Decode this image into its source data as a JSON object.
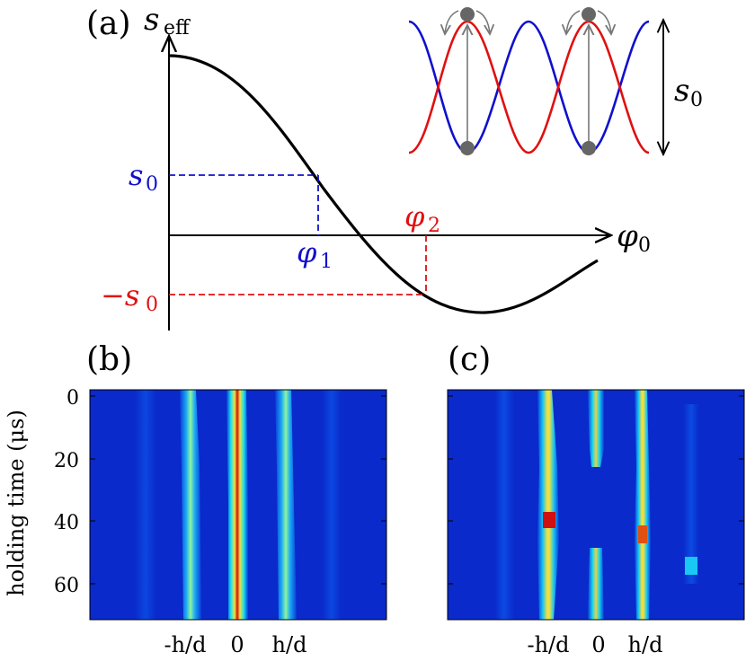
{
  "panel_a": {
    "label": "(a)",
    "y_axis_label": "s",
    "y_axis_sub": "eff",
    "x_axis_label": "φ",
    "x_axis_sub": "0",
    "s0_label": "s",
    "s0_sub": "0",
    "neg_s0_label": "−s",
    "neg_s0_sub": "0",
    "phi1_label": "φ",
    "phi1_sub": "1",
    "phi2_label": "φ",
    "phi2_sub": "2",
    "inset_label": "s",
    "inset_sub": "0"
  },
  "panel_b": {
    "label": "(b)",
    "y_axis_label": "holding time (μs)",
    "y_ticks": [
      "0",
      "20",
      "40",
      "60"
    ],
    "x_ticks": [
      "-h/d",
      "0",
      "h/d"
    ]
  },
  "panel_c": {
    "label": "(c)",
    "x_ticks": [
      "-h/d",
      "0",
      "h/d"
    ]
  },
  "colors": {
    "blue": "#1010cc",
    "red": "#e01010",
    "heat_bg": "#0a2acb"
  }
}
